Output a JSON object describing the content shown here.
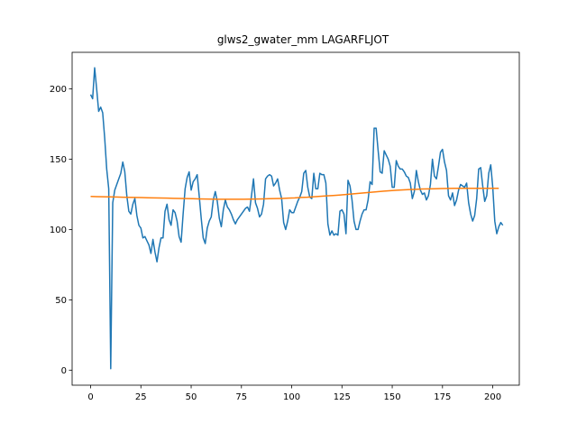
{
  "chart_data": {
    "type": "line",
    "title": "glws2_gwater_mm LAGARFLJOT",
    "xlabel": "",
    "ylabel": "",
    "xlim": [
      -9.2,
      213.2
    ],
    "ylim": [
      -10.7,
      226
    ],
    "x_ticks": [
      0,
      25,
      50,
      75,
      100,
      125,
      150,
      175,
      200
    ],
    "y_ticks": [
      0,
      50,
      100,
      150,
      200
    ],
    "grid": false,
    "legend": "none",
    "series": [
      {
        "color": "#1f77b4",
        "x_start": 0,
        "x_step": 1,
        "values": [
          196,
          193,
          215,
          200,
          184,
          187,
          183,
          165,
          143,
          129,
          1,
          119,
          128,
          132,
          136,
          140,
          148,
          141,
          124,
          113,
          111,
          118,
          122,
          110,
          103,
          101,
          94,
          95,
          92,
          89,
          83,
          93,
          84,
          77,
          87,
          94,
          94,
          113,
          118,
          107,
          103,
          114,
          112,
          106,
          95,
          91,
          111,
          129,
          137,
          141,
          128,
          134,
          136,
          139,
          124,
          108,
          94,
          90,
          101,
          106,
          109,
          121,
          127,
          120,
          108,
          102,
          114,
          121,
          116,
          114,
          111,
          107,
          104,
          107,
          109,
          111,
          113,
          115,
          116,
          113,
          124,
          136,
          119,
          115,
          109,
          111,
          118,
          136,
          138,
          139,
          138,
          131,
          133,
          136,
          128,
          122,
          105,
          100,
          106,
          114,
          112,
          112,
          116,
          120,
          123,
          127,
          140,
          142,
          130,
          123,
          122,
          140,
          129,
          129,
          140,
          139,
          139,
          133,
          104,
          96,
          99,
          96,
          97,
          96,
          113,
          114,
          111,
          97,
          135,
          131,
          121,
          106,
          100,
          100,
          106,
          111,
          114,
          114,
          121,
          134,
          132,
          172,
          172,
          156,
          141,
          140,
          156,
          153,
          150,
          145,
          130,
          130,
          149,
          145,
          143,
          143,
          141,
          138,
          137,
          133,
          122,
          127,
          142,
          134,
          128,
          125,
          126,
          121,
          124,
          132,
          150,
          138,
          136,
          145,
          155,
          157,
          148,
          142,
          124,
          121,
          126,
          117,
          121,
          128,
          132,
          131,
          130,
          133,
          119,
          111,
          106,
          110,
          122,
          143,
          144,
          131,
          120,
          124,
          140,
          146,
          130,
          106,
          97,
          102,
          105,
          103
        ]
      },
      {
        "color": "#ff7f0e",
        "x_start": 0,
        "x_step": 1,
        "values": [
          123.5,
          123.4,
          123.3,
          123.2,
          123.1,
          123.0,
          122.9,
          122.8,
          122.7,
          122.6,
          122.5,
          122.4,
          122.3,
          122.2,
          122.1,
          122.0,
          121.9,
          121.8,
          121.7,
          121.6,
          121.5,
          121.5,
          121.5,
          121.5,
          121.5,
          121.6,
          121.7,
          121.8,
          121.9,
          122.0,
          122.1,
          122.3,
          122.5,
          122.8,
          123.0,
          123.3,
          123.6,
          123.9,
          124.2,
          124.5,
          124.9,
          125.3,
          125.7,
          126.1,
          126.5,
          126.9,
          127.3,
          127.6,
          127.9,
          128.2,
          128.4,
          128.6,
          128.8,
          128.9,
          129.0,
          129.1,
          129.2,
          129.3,
          129.3,
          129.3,
          129.3,
          129.3,
          129.3,
          129.3,
          129.3
        ]
      }
    ]
  }
}
